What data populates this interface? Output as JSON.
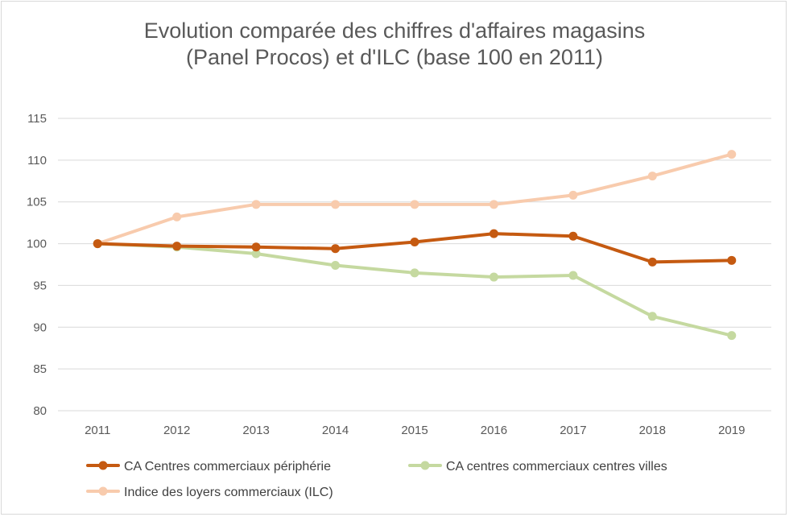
{
  "chart_data": {
    "type": "line",
    "title_lines": [
      "Evolution comparée des chiffres d'affaires magasins",
      "(Panel Procos) et d'ILC (base 100 en 2011)"
    ],
    "categories": [
      "2011",
      "2012",
      "2013",
      "2014",
      "2015",
      "2016",
      "2017",
      "2018",
      "2019"
    ],
    "series": [
      {
        "name": "CA Centres commerciaux périphérie",
        "color": "#c55a11",
        "values": [
          100,
          99.7,
          99.6,
          99.4,
          100.2,
          101.2,
          100.9,
          97.8,
          98.0
        ]
      },
      {
        "name": "CA centres commerciaux centres villes",
        "color": "#c5d9a0",
        "values": [
          100,
          99.6,
          98.8,
          97.4,
          96.5,
          96.0,
          96.2,
          91.3,
          89.0
        ]
      },
      {
        "name": "Indice des loyers commerciaux (ILC)",
        "color": "#f8cbad",
        "values": [
          100,
          103.2,
          104.7,
          104.7,
          104.7,
          104.7,
          105.8,
          108.1,
          110.7
        ]
      }
    ],
    "ylim": [
      80,
      115
    ],
    "yticks": [
      80,
      85,
      90,
      95,
      100,
      105,
      110,
      115
    ],
    "grid": true,
    "legend_position": "bottom"
  }
}
